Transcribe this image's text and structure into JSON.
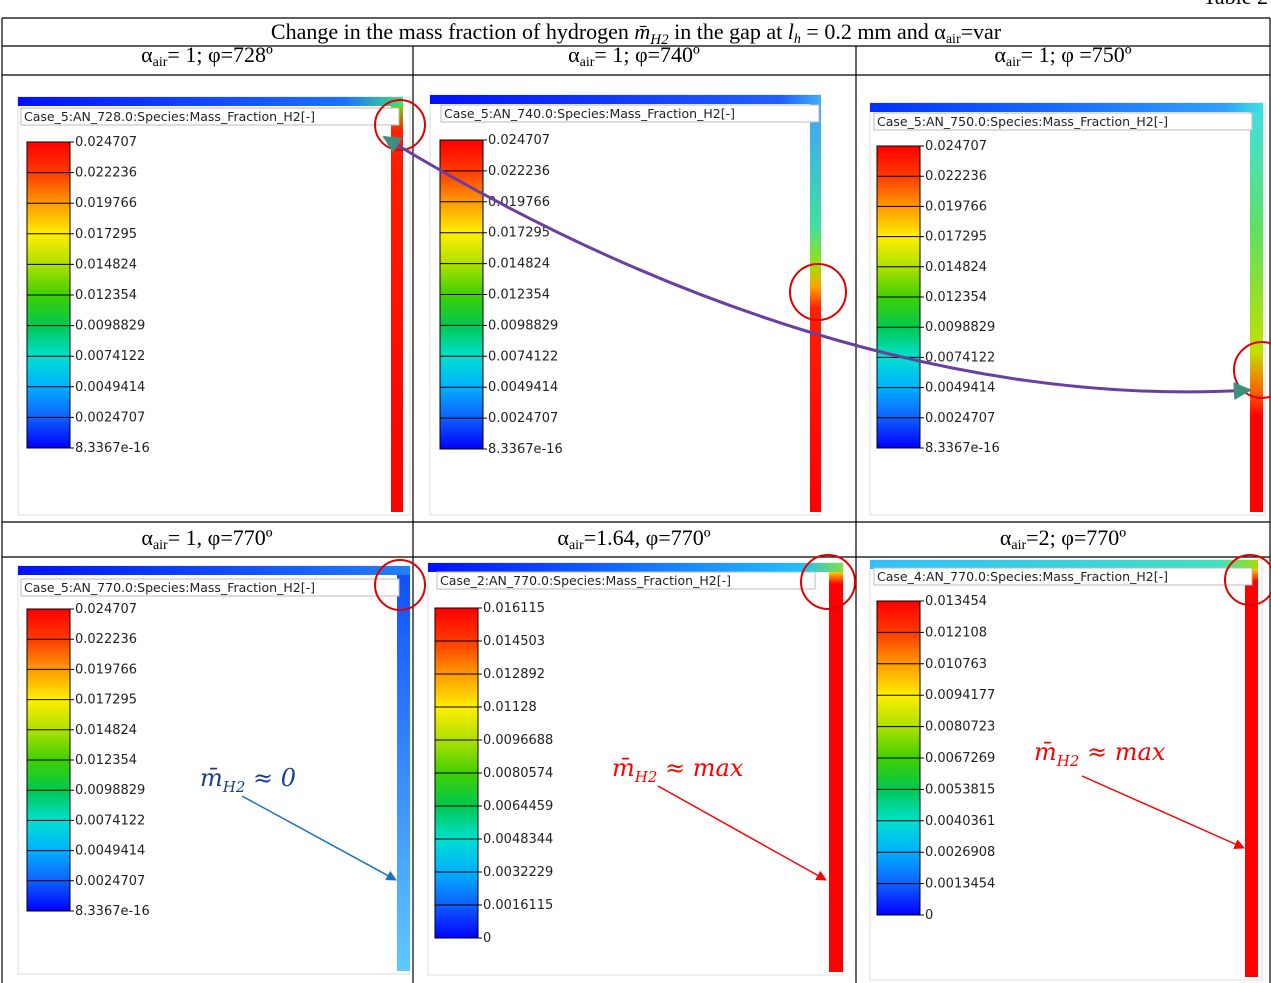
{
  "corner_label": "Table 2",
  "header": {
    "title": [
      "Change in the mass fraction of hydrogen ",
      "m̄",
      "H2",
      " in the gap at ",
      "l",
      "h",
      " = 0.2 mm and α",
      "air",
      "=var"
    ]
  },
  "panels": [
    {
      "label": [
        "α",
        "air",
        "= 1; φ=728º"
      ],
      "caption": "Case_5:AN_728.0:Species:Mass_Fraction_H2[-]",
      "legend": [
        "0.024707",
        "0.022236",
        "0.019766",
        "0.017295",
        "0.014824",
        "0.012354",
        "0.0098829",
        "0.0074122",
        "0.0049414",
        "0.0024707",
        "8.3367e-16"
      ]
    },
    {
      "label": [
        "α",
        "air",
        "= 1; φ=740º"
      ],
      "caption": "Case_5:AN_740.0:Species:Mass_Fraction_H2[-]",
      "legend": [
        "0.024707",
        "0.022236",
        "0.019766",
        "0.017295",
        "0.014824",
        "0.012354",
        "0.0098829",
        "0.0074122",
        "0.0049414",
        "0.0024707",
        "8.3367e-16"
      ]
    },
    {
      "label": [
        "α",
        "air",
        "= 1; φ =750º"
      ],
      "caption": "Case_5:AN_750.0:Species:Mass_Fraction_H2[-]",
      "legend": [
        "0.024707",
        "0.022236",
        "0.019766",
        "0.017295",
        "0.014824",
        "0.012354",
        "0.0098829",
        "0.0074122",
        "0.0049414",
        "0.0024707",
        "8.3367e-16"
      ]
    },
    {
      "label": [
        "α",
        "air",
        "= 1, φ=770º"
      ],
      "caption": "Case_5:AN_770.0:Species:Mass_Fraction_H2[-]",
      "legend": [
        "0.024707",
        "0.022236",
        "0.019766",
        "0.017295",
        "0.014824",
        "0.012354",
        "0.0098829",
        "0.0074122",
        "0.0049414",
        "0.0024707",
        "8.3367e-16"
      ]
    },
    {
      "label": [
        "α",
        "air",
        "=1.64, φ=770º"
      ],
      "caption": "Case_2:AN_770.0:Species:Mass_Fraction_H2[-]",
      "legend": [
        "0.016115",
        "0.014503",
        "0.012892",
        "0.01128",
        "0.0096688",
        "0.0080574",
        "0.0064459",
        "0.0048344",
        "0.0032229",
        "0.0016115",
        "0"
      ]
    },
    {
      "label": [
        "α",
        "air",
        "=2; φ=770º"
      ],
      "caption": "Case_4:AN_770.0:Species:Mass_Fraction_H2[-]",
      "legend": [
        "0.013454",
        "0.012108",
        "0.010763",
        "0.0094177",
        "0.0080723",
        "0.0067269",
        "0.0053815",
        "0.0040361",
        "0.0026908",
        "0.0013454",
        "0"
      ]
    }
  ],
  "annotations": [
    [
      "m̄",
      "H2",
      " ≈ 0"
    ],
    [
      "m̄",
      "H2",
      " ≈ max"
    ],
    [
      "m̄",
      "H2",
      " ≈ max"
    ]
  ]
}
